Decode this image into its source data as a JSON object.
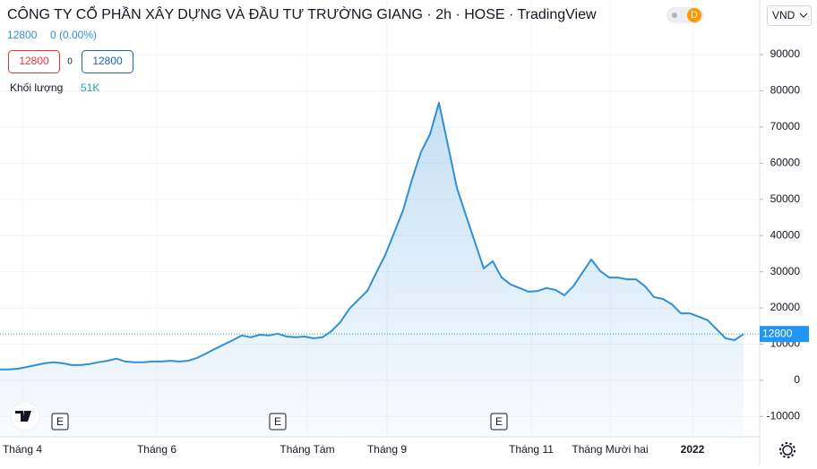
{
  "chart_data": {
    "type": "line",
    "title": "CÔNG TY CỔ PHẦN XÂY DỰNG VÀ ĐẦU TƯ TRƯỜNG GIANG · 2h · HOSE · TradingView",
    "badge": "D",
    "currency": "VND",
    "quote_price": 12800,
    "quote_change": "0 (0.00%)",
    "bid": 12800,
    "spread": 0,
    "ask": 12800,
    "volume_label": "Khối lượng",
    "volume_value": "51K",
    "last_price": 12800,
    "color": "#2f8fd8",
    "x": [
      0,
      1,
      2,
      3,
      4,
      5,
      6,
      7,
      8,
      9,
      10,
      11,
      12,
      13,
      14,
      15,
      16,
      17,
      18,
      19,
      20,
      21,
      22,
      23,
      24,
      25,
      26,
      27,
      28,
      29,
      30,
      31,
      32,
      33,
      34,
      35,
      36,
      37,
      38,
      39,
      40,
      41,
      42,
      43,
      44,
      45,
      46,
      47,
      48,
      49,
      50,
      51,
      52,
      53,
      54,
      55,
      56,
      57,
      58,
      59,
      60,
      61,
      62,
      63,
      64,
      65,
      66,
      67,
      68,
      69,
      70,
      71,
      72,
      73,
      74,
      75,
      76,
      77,
      78,
      79,
      80,
      81,
      82,
      83
    ],
    "values": [
      3000,
      3000,
      3200,
      3700,
      4200,
      4700,
      5000,
      4700,
      4200,
      4200,
      4500,
      5000,
      5400,
      6000,
      5200,
      5000,
      5000,
      5200,
      5200,
      5400,
      5200,
      5400,
      6200,
      7400,
      8700,
      9900,
      11100,
      12400,
      11900,
      12600,
      12400,
      12900,
      12100,
      11900,
      12100,
      11600,
      11900,
      13600,
      16100,
      19800,
      22300,
      24700,
      29700,
      34600,
      40800,
      47000,
      55600,
      63100,
      68000,
      76700,
      65000,
      53200,
      45700,
      38300,
      30900,
      32900,
      28400,
      26500,
      25500,
      24500,
      24700,
      25500,
      25000,
      23500,
      26000,
      29700,
      33400,
      30200,
      28400,
      28400,
      27900,
      27900,
      26000,
      23000,
      22500,
      21000,
      18500,
      18500,
      17600,
      16600,
      14100,
      11600,
      11100,
      12800
    ],
    "xlim": [
      0,
      84.8
    ],
    "xticks": [
      {
        "value": 2.5,
        "label": "Tháng 4"
      },
      {
        "value": 17.5,
        "label": "Tháng 6"
      },
      {
        "value": 34.3,
        "label": "Tháng Tám"
      },
      {
        "value": 43.2,
        "label": "Tháng 9"
      },
      {
        "value": 59.3,
        "label": "Tháng 11"
      },
      {
        "value": 68.1,
        "label": "Tháng Mười hai"
      },
      {
        "value": 77.3,
        "label": "2022"
      }
    ],
    "ylim": [
      -15600,
      105100
    ],
    "yticks": [
      -10000,
      0,
      10000,
      20000,
      30000,
      40000,
      50000,
      60000,
      70000,
      80000,
      90000
    ],
    "events": [
      {
        "x": 6.7,
        "label": "E"
      },
      {
        "x": 31.0,
        "label": "E"
      },
      {
        "x": 55.7,
        "label": "E"
      }
    ]
  }
}
